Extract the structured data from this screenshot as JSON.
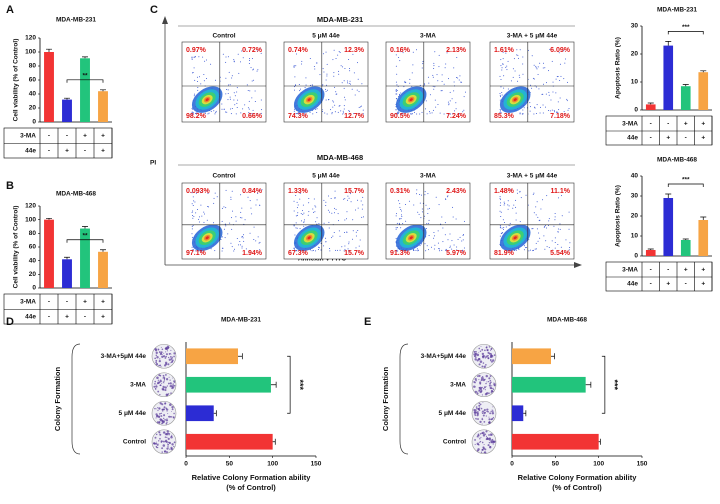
{
  "panel_labels": [
    "A",
    "B",
    "C",
    "D",
    "E"
  ],
  "flow_axes": {
    "y": "PI",
    "x": "Annexin V-FITC"
  },
  "flow": [
    {
      "title": "MDA-MB-231",
      "panels": [
        {
          "name": "Control",
          "quadrants": [
            "0.97%",
            "0.72%",
            "98.2%",
            "0.66%"
          ]
        },
        {
          "name": "5 μM 44e",
          "quadrants": [
            "0.74%",
            "12.3%",
            "74.3%",
            "12.7%"
          ]
        },
        {
          "name": "3-MA",
          "quadrants": [
            "0.16%",
            "2.13%",
            "90.5%",
            "7.24%"
          ]
        },
        {
          "name": "3-MA + 5 μM 44e",
          "quadrants": [
            "1.61%",
            "6.09%",
            "85.3%",
            "7.18%"
          ]
        }
      ]
    },
    {
      "title": "MDA-MB-468",
      "panels": [
        {
          "name": "Control",
          "quadrants": [
            "0.093%",
            "0.84%",
            "97.1%",
            "1.94%"
          ]
        },
        {
          "name": "5 μM 44e",
          "quadrants": [
            "1.33%",
            "15.7%",
            "67.3%",
            "15.7%"
          ]
        },
        {
          "name": "3-MA",
          "quadrants": [
            "0.31%",
            "2.43%",
            "91.3%",
            "5.97%"
          ]
        },
        {
          "name": "3-MA + 5 μM 44e",
          "quadrants": [
            "1.48%",
            "11.1%",
            "81.9%",
            "5.54%"
          ]
        }
      ]
    }
  ],
  "chart_data": [
    {
      "type": "bar",
      "title": "MDA-MB-231",
      "ylabel": "Cell viability (% of Control)",
      "values": [
        100,
        32,
        91,
        44
      ],
      "errors": [
        4,
        2,
        2,
        2
      ],
      "colors": [
        "#f23434",
        "#2c2cd4",
        "#22c47c",
        "#f7a444"
      ],
      "ylim": [
        0,
        120
      ],
      "yticks": [
        0,
        20,
        40,
        60,
        80,
        100,
        120
      ],
      "significance": "**",
      "treatments": [
        {
          "name": "3-MA",
          "signs": [
            "-",
            "-",
            "+",
            "+"
          ]
        },
        {
          "name": "44e",
          "signs": [
            "-",
            "+",
            "-",
            "+"
          ]
        }
      ]
    },
    {
      "type": "bar",
      "title": "MDA-MB-468",
      "ylabel": "Cell viability (% of Control)",
      "values": [
        100,
        42,
        87,
        53
      ],
      "errors": [
        2,
        3,
        3,
        3
      ],
      "colors": [
        "#f23434",
        "#2c2cd4",
        "#22c47c",
        "#f7a444"
      ],
      "ylim": [
        0,
        120
      ],
      "yticks": [
        0,
        20,
        40,
        60,
        80,
        100,
        120
      ],
      "significance": "**",
      "treatments": [
        {
          "name": "3-MA",
          "signs": [
            "-",
            "-",
            "+",
            "+"
          ]
        },
        {
          "name": "44e",
          "signs": [
            "-",
            "+",
            "-",
            "+"
          ]
        }
      ]
    },
    {
      "type": "bar",
      "title": "MDA-MB-231",
      "ylabel": "Apoptosis Ratio (%)",
      "values": [
        2,
        23,
        8.5,
        13.5
      ],
      "errors": [
        0.5,
        1.5,
        0.6,
        0.5
      ],
      "colors": [
        "#f23434",
        "#2c2cd4",
        "#22c47c",
        "#f7a444"
      ],
      "ylim": [
        0,
        30
      ],
      "yticks": [
        0,
        10,
        20,
        30
      ],
      "significance": "***",
      "treatments": [
        {
          "name": "3-MA",
          "signs": [
            "-",
            "-",
            "+",
            "+"
          ]
        },
        {
          "name": "44e",
          "signs": [
            "-",
            "+",
            "-",
            "+"
          ]
        }
      ]
    },
    {
      "type": "bar",
      "title": "MDA-MB-468",
      "ylabel": "Apoptosis Ratio (%)",
      "values": [
        3,
        29,
        8,
        18
      ],
      "errors": [
        0.5,
        2,
        0.5,
        1.5
      ],
      "colors": [
        "#f23434",
        "#2c2cd4",
        "#22c47c",
        "#f7a444"
      ],
      "ylim": [
        0,
        40
      ],
      "yticks": [
        0,
        10,
        20,
        30,
        40
      ],
      "significance": "***",
      "treatments": [
        {
          "name": "3-MA",
          "signs": [
            "-",
            "-",
            "+",
            "+"
          ]
        },
        {
          "name": "44e",
          "signs": [
            "-",
            "+",
            "-",
            "+"
          ]
        }
      ]
    },
    {
      "type": "barh",
      "title": "MDA-MB-231",
      "ylabel": "Colony Formation",
      "xlabel": [
        "Relative Colony Formation ability",
        "(% of Control)"
      ],
      "categories": [
        "3-MA+5μM 44e",
        "3-MA",
        "5 μM 44e",
        "Control"
      ],
      "values": [
        60,
        98,
        32,
        100
      ],
      "errors": [
        5,
        6,
        3,
        3
      ],
      "colors": [
        "#f7a444",
        "#22c47c",
        "#2c2cd4",
        "#f23434"
      ],
      "xlim": [
        0,
        150
      ],
      "xticks": [
        0,
        50,
        100,
        150
      ],
      "significance": "***"
    },
    {
      "type": "barh",
      "title": "MDA-MB-468",
      "ylabel": "Colony Formation",
      "xlabel": [
        "Relative Colony Formation ability",
        "(% of Control)"
      ],
      "categories": [
        "3-MA+5μM 44e",
        "3-MA",
        "5 μM 44e",
        "Control"
      ],
      "values": [
        45,
        85,
        13,
        100
      ],
      "errors": [
        4,
        6,
        3,
        2
      ],
      "colors": [
        "#f7a444",
        "#22c47c",
        "#2c2cd4",
        "#f23434"
      ],
      "xlim": [
        0,
        150
      ],
      "xticks": [
        0,
        50,
        100,
        150
      ],
      "significance": "***"
    }
  ]
}
